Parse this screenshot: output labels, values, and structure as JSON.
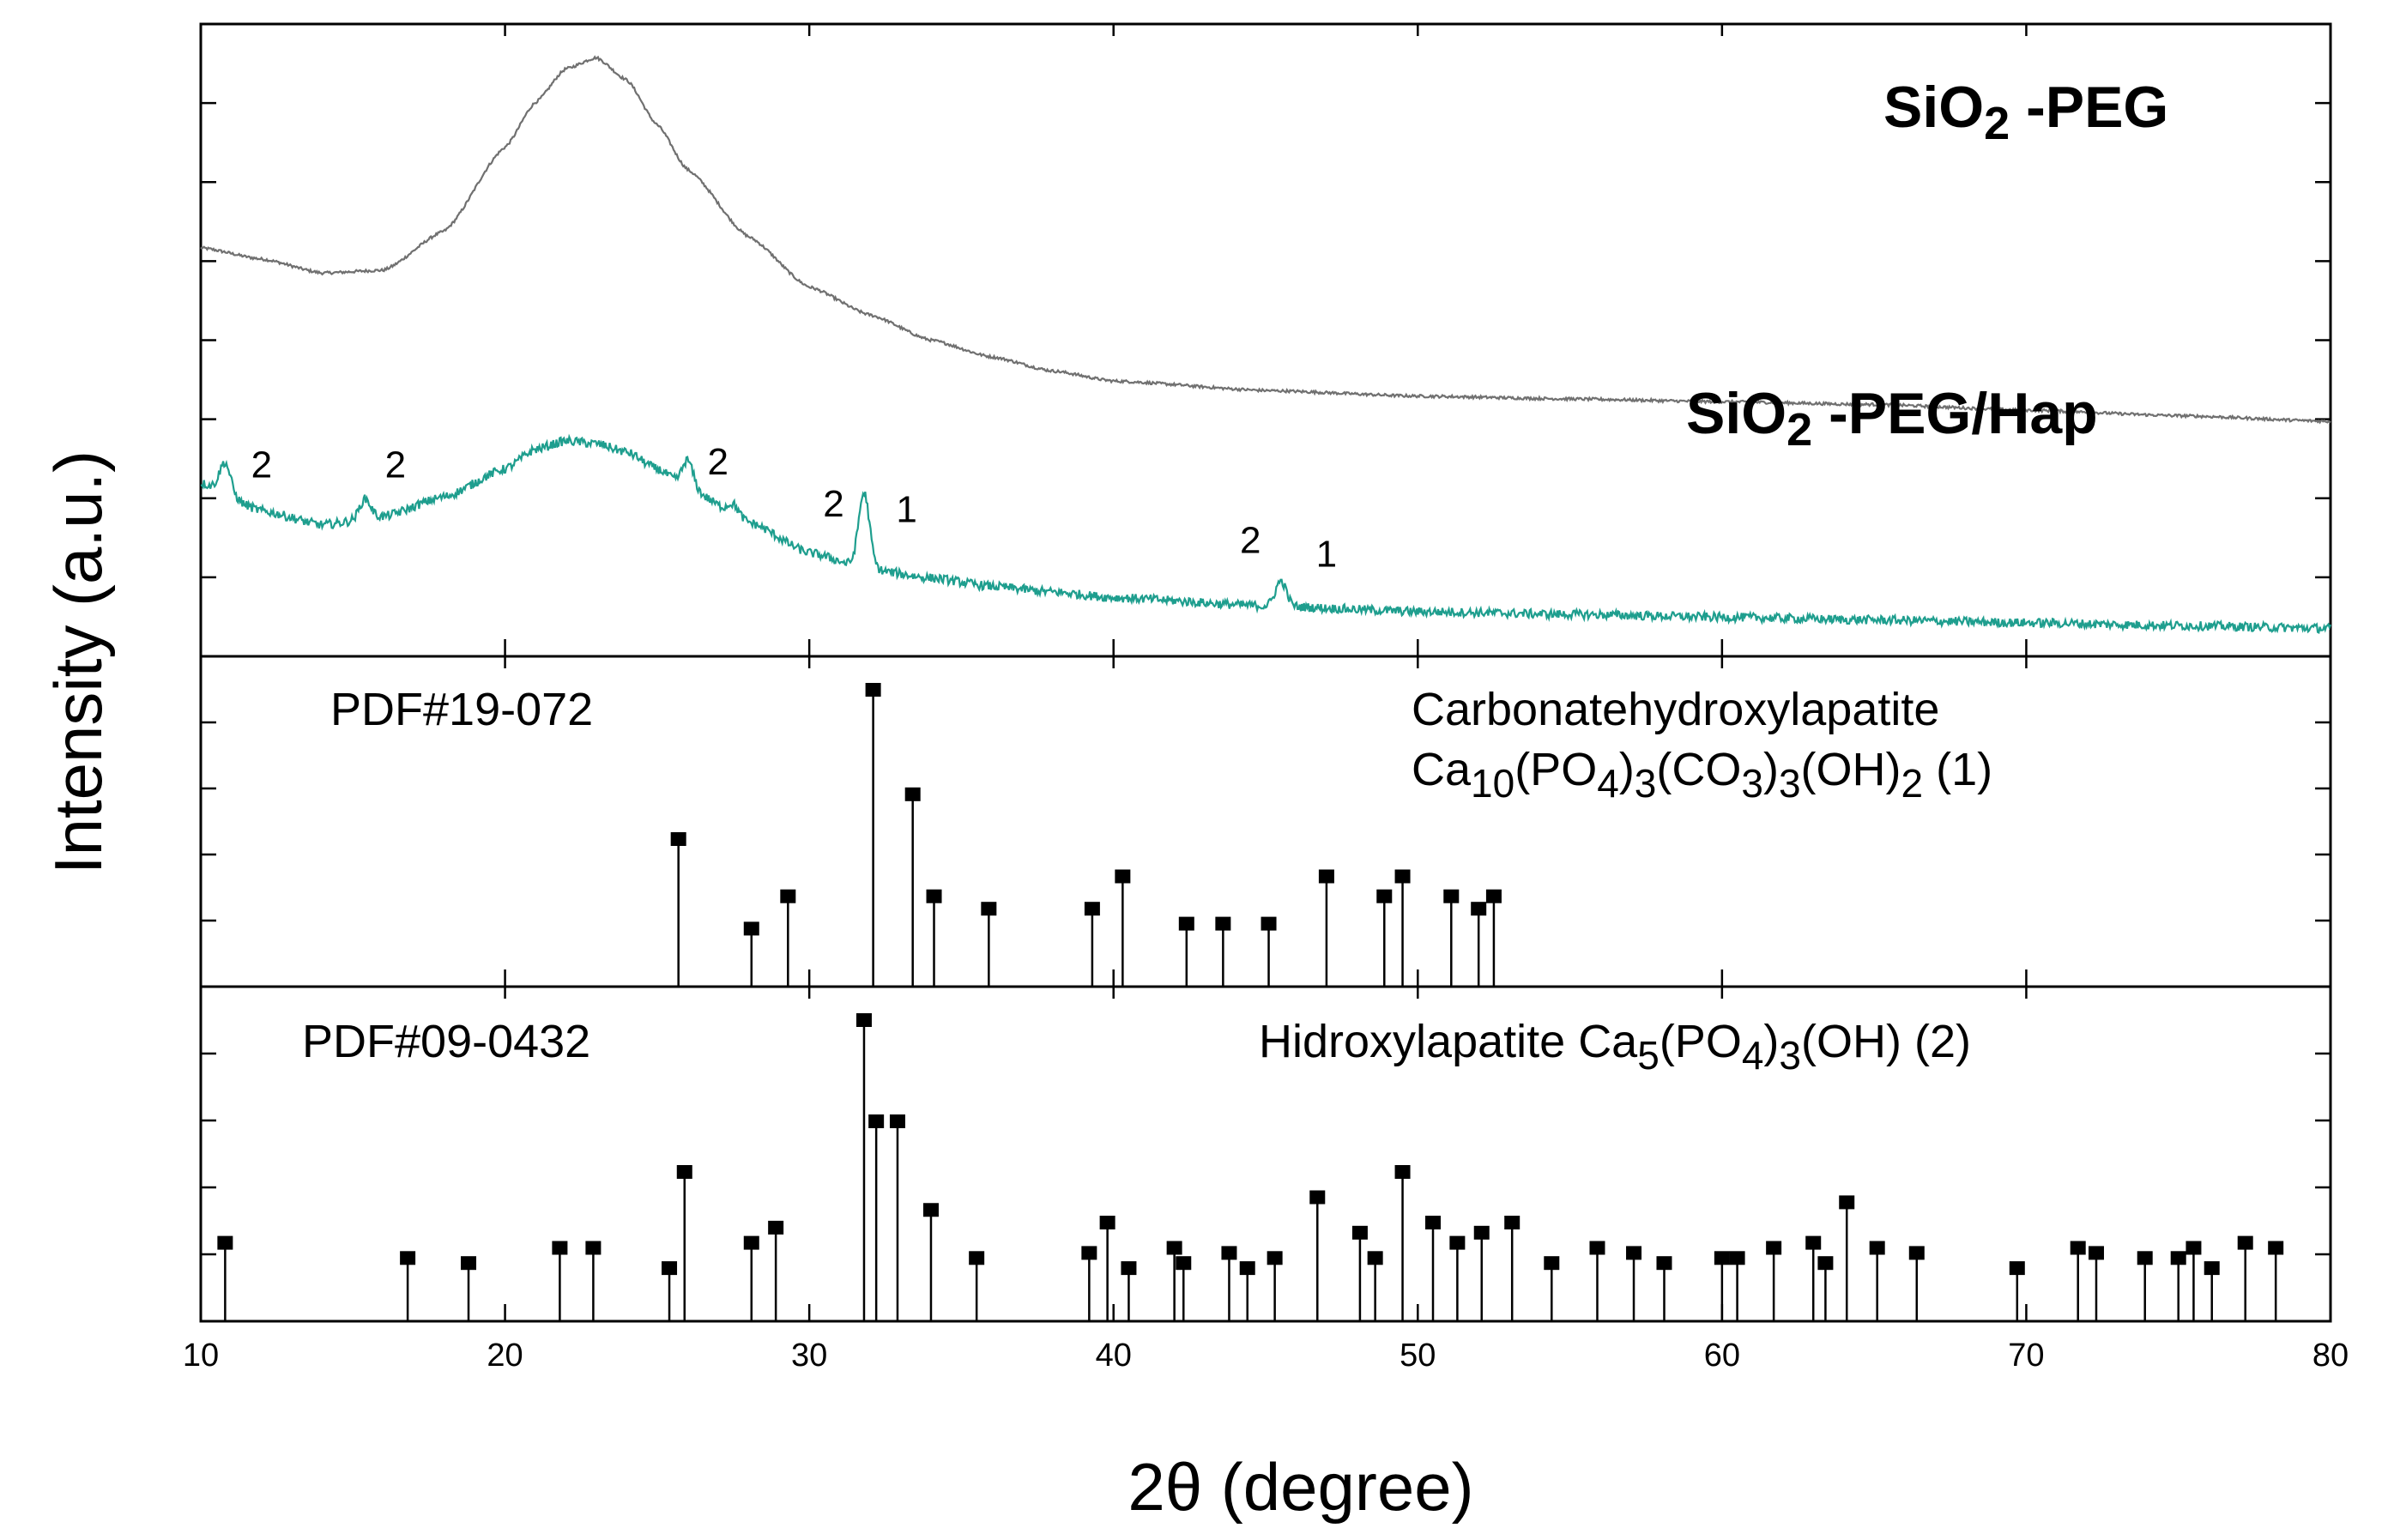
{
  "chart_data": {
    "type": "line",
    "xlabel": "2θ (degree)",
    "ylabel": "Intensity (a.u.)",
    "xlim": [
      10,
      80
    ],
    "x_ticks": [
      10,
      20,
      30,
      40,
      50,
      60,
      70,
      80
    ],
    "colors": {
      "sio2_peg": "#707070",
      "sio2_peg_hap": "#1e9e8e",
      "reference_sticks": "#000000"
    },
    "series": [
      {
        "name": "SiO2 -PEG",
        "label_parts": [
          "SiO",
          "2",
          " -PEG"
        ],
        "color": "#707070",
        "x": [
          10,
          12,
          14,
          16,
          18,
          20,
          21,
          22,
          23,
          24,
          25,
          26,
          28,
          30,
          32,
          34,
          36,
          38,
          40,
          45,
          50,
          55,
          60,
          65,
          70,
          75,
          80
        ],
        "y": [
          7.0,
          6.8,
          6.55,
          6.6,
          7.3,
          8.8,
          9.6,
          10.2,
          10.4,
          10.0,
          9.2,
          8.4,
          7.2,
          6.3,
          5.8,
          5.35,
          5.05,
          4.8,
          4.62,
          4.45,
          4.35,
          4.3,
          4.25,
          4.2,
          4.1,
          4.0,
          3.9
        ]
      },
      {
        "name": "SiO2 -PEG/Hap",
        "label_parts": [
          "SiO",
          "2",
          " -PEG/Hap"
        ],
        "color": "#1e9e8e",
        "x": [
          10,
          12,
          14,
          16,
          18,
          20,
          21,
          22,
          23,
          24,
          25,
          26,
          28,
          30,
          32,
          34,
          36,
          38,
          40,
          45,
          50,
          55,
          60,
          65,
          70,
          75,
          80
        ],
        "y": [
          2.8,
          2.3,
          2.05,
          2.2,
          2.55,
          3.05,
          3.4,
          3.55,
          3.5,
          3.35,
          3.05,
          2.7,
          2.1,
          1.55,
          1.25,
          1.1,
          0.95,
          0.85,
          0.75,
          0.6,
          0.5,
          0.45,
          0.4,
          0.35,
          0.3,
          0.25,
          0.2
        ],
        "peaks": [
          {
            "x": 10.8,
            "height": 0.55
          },
          {
            "x": 15.4,
            "height": 0.35
          },
          {
            "x": 26.0,
            "height": 0.5
          },
          {
            "x": 27.5,
            "height": 0.2
          },
          {
            "x": 31.8,
            "height": 1.35
          },
          {
            "x": 45.5,
            "height": 0.45
          }
        ],
        "peak_labels": [
          {
            "x": 12.0,
            "y": 2.9,
            "text": "2"
          },
          {
            "x": 16.4,
            "y": 2.9,
            "text": "2"
          },
          {
            "x": 27.0,
            "y": 2.95,
            "text": "2"
          },
          {
            "x": 30.8,
            "y": 2.2,
            "text": "2"
          },
          {
            "x": 33.2,
            "y": 2.1,
            "text": "1"
          },
          {
            "x": 44.5,
            "y": 1.55,
            "text": "2"
          },
          {
            "x": 47.0,
            "y": 1.3,
            "text": "1"
          }
        ]
      }
    ],
    "references": [
      {
        "name": "PDF#19-072",
        "compound": "Carbonatehydroxylapatite",
        "formula_parts": [
          {
            "t": "Ca",
            "s": false
          },
          {
            "t": "10",
            "s": true
          },
          {
            "t": "(PO",
            "s": false
          },
          {
            "t": "4",
            "s": true
          },
          {
            "t": ")",
            "s": false
          },
          {
            "t": "3",
            "s": true
          },
          {
            "t": "(CO",
            "s": false
          },
          {
            "t": "3",
            "s": true
          },
          {
            "t": ")",
            "s": false
          },
          {
            "t": "3",
            "s": true
          },
          {
            "t": "(OH)",
            "s": false
          },
          {
            "t": "2",
            "s": true
          }
        ],
        "tag": "(1)",
        "ylim": [
          0,
          100
        ],
        "peaks": [
          {
            "x": 25.7,
            "y": 40
          },
          {
            "x": 28.1,
            "y": 4
          },
          {
            "x": 29.3,
            "y": 17
          },
          {
            "x": 32.1,
            "y": 100
          },
          {
            "x": 33.4,
            "y": 58
          },
          {
            "x": 34.1,
            "y": 17
          },
          {
            "x": 35.9,
            "y": 12
          },
          {
            "x": 39.3,
            "y": 12
          },
          {
            "x": 40.3,
            "y": 25
          },
          {
            "x": 42.4,
            "y": 6
          },
          {
            "x": 43.6,
            "y": 6
          },
          {
            "x": 45.1,
            "y": 6
          },
          {
            "x": 47.0,
            "y": 25
          },
          {
            "x": 48.9,
            "y": 17
          },
          {
            "x": 49.5,
            "y": 25
          },
          {
            "x": 51.1,
            "y": 17
          },
          {
            "x": 52.0,
            "y": 12
          },
          {
            "x": 52.5,
            "y": 17
          }
        ]
      },
      {
        "name": "PDF#09-0432",
        "compound": "Hidroxylapatite",
        "formula_parts": [
          {
            "t": "Ca",
            "s": false
          },
          {
            "t": "5",
            "s": true
          },
          {
            "t": "(PO",
            "s": false
          },
          {
            "t": "4",
            "s": true
          },
          {
            "t": ")",
            "s": false
          },
          {
            "t": "3",
            "s": true
          },
          {
            "t": "(OH)",
            "s": false
          }
        ],
        "tag": "(2)",
        "ylim": [
          0,
          100
        ],
        "peaks": [
          {
            "x": 10.8,
            "y": 12
          },
          {
            "x": 16.8,
            "y": 6
          },
          {
            "x": 18.8,
            "y": 4
          },
          {
            "x": 21.8,
            "y": 10
          },
          {
            "x": 22.9,
            "y": 10
          },
          {
            "x": 25.4,
            "y": 2
          },
          {
            "x": 25.9,
            "y": 40
          },
          {
            "x": 28.1,
            "y": 12
          },
          {
            "x": 28.9,
            "y": 18
          },
          {
            "x": 31.8,
            "y": 100
          },
          {
            "x": 32.2,
            "y": 60
          },
          {
            "x": 32.9,
            "y": 60
          },
          {
            "x": 34.0,
            "y": 25
          },
          {
            "x": 35.5,
            "y": 6
          },
          {
            "x": 39.2,
            "y": 8
          },
          {
            "x": 39.8,
            "y": 20
          },
          {
            "x": 40.5,
            "y": 2
          },
          {
            "x": 42.0,
            "y": 10
          },
          {
            "x": 42.3,
            "y": 4
          },
          {
            "x": 43.8,
            "y": 8
          },
          {
            "x": 44.4,
            "y": 2
          },
          {
            "x": 45.3,
            "y": 6
          },
          {
            "x": 46.7,
            "y": 30
          },
          {
            "x": 48.1,
            "y": 16
          },
          {
            "x": 48.6,
            "y": 6
          },
          {
            "x": 49.5,
            "y": 40
          },
          {
            "x": 50.5,
            "y": 20
          },
          {
            "x": 51.3,
            "y": 12
          },
          {
            "x": 52.1,
            "y": 16
          },
          {
            "x": 53.1,
            "y": 20
          },
          {
            "x": 54.4,
            "y": 4
          },
          {
            "x": 55.9,
            "y": 10
          },
          {
            "x": 57.1,
            "y": 8
          },
          {
            "x": 58.1,
            "y": 4
          },
          {
            "x": 60.0,
            "y": 6
          },
          {
            "x": 60.5,
            "y": 6
          },
          {
            "x": 61.7,
            "y": 10
          },
          {
            "x": 63.0,
            "y": 12
          },
          {
            "x": 63.4,
            "y": 4
          },
          {
            "x": 64.1,
            "y": 28
          },
          {
            "x": 65.1,
            "y": 10
          },
          {
            "x": 66.4,
            "y": 8
          },
          {
            "x": 69.7,
            "y": 2
          },
          {
            "x": 71.7,
            "y": 10
          },
          {
            "x": 72.3,
            "y": 8
          },
          {
            "x": 73.9,
            "y": 6
          },
          {
            "x": 75.0,
            "y": 6
          },
          {
            "x": 75.5,
            "y": 10
          },
          {
            "x": 76.1,
            "y": 2
          },
          {
            "x": 77.2,
            "y": 12
          },
          {
            "x": 78.2,
            "y": 10
          }
        ]
      }
    ]
  }
}
